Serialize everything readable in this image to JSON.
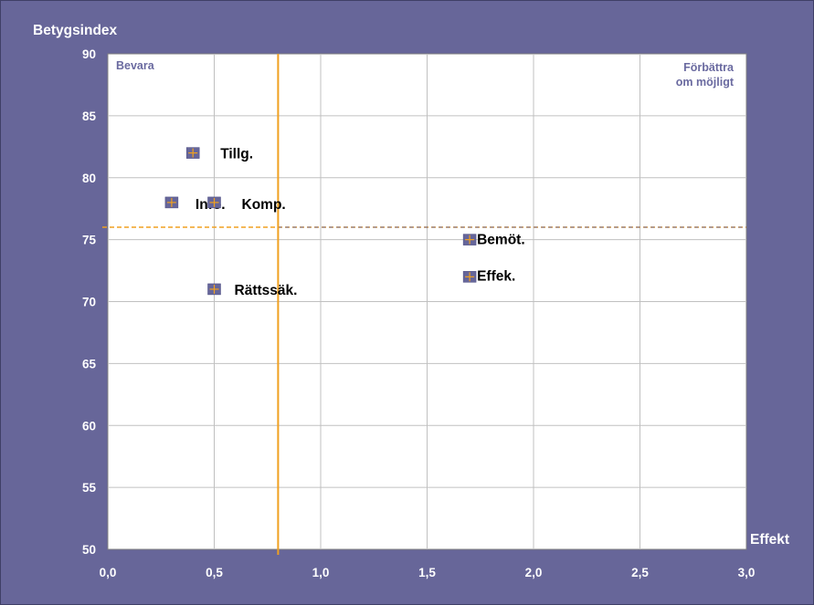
{
  "chart_data": {
    "type": "scatter",
    "ylabel": "Betygsindex",
    "xlabel": "Effekt",
    "xlim": [
      0,
      3
    ],
    "ylim": [
      50,
      90
    ],
    "x_ticks": [
      "0,0",
      "0,5",
      "1,0",
      "1,5",
      "2,0",
      "2,5",
      "3,0"
    ],
    "y_ticks": [
      "50",
      "55",
      "60",
      "65",
      "70",
      "75",
      "80",
      "85",
      "90"
    ],
    "x_tick_values": [
      0,
      0.5,
      1,
      1.5,
      2,
      2.5,
      3
    ],
    "y_tick_values": [
      50,
      55,
      60,
      65,
      70,
      75,
      80,
      85,
      90
    ],
    "grid": "horizontal and vertical",
    "reference_lines": {
      "x": 0.8,
      "y": 76
    },
    "quadrant_labels": {
      "top_left": "Bevara",
      "top_right_line1": "Förbättra",
      "top_right_line2": "om möjligt"
    },
    "points": [
      {
        "label": "Tillg.",
        "x": 0.4,
        "y": 82
      },
      {
        "label": "Info.",
        "x": 0.3,
        "y": 78
      },
      {
        "label": "Komp.",
        "x": 0.5,
        "y": 78
      },
      {
        "label": "Rättssäk.",
        "x": 0.5,
        "y": 71
      },
      {
        "label": "Bemöt.",
        "x": 1.7,
        "y": 75
      },
      {
        "label": "Effek.",
        "x": 1.7,
        "y": 72
      }
    ]
  },
  "colors": {
    "background": "#676699",
    "plot_area": "#ffffff",
    "grid": "#c0c0c0",
    "reference_line": "#f0a020",
    "marker_fill": "#66669a",
    "marker_cross": "#f0a020"
  }
}
